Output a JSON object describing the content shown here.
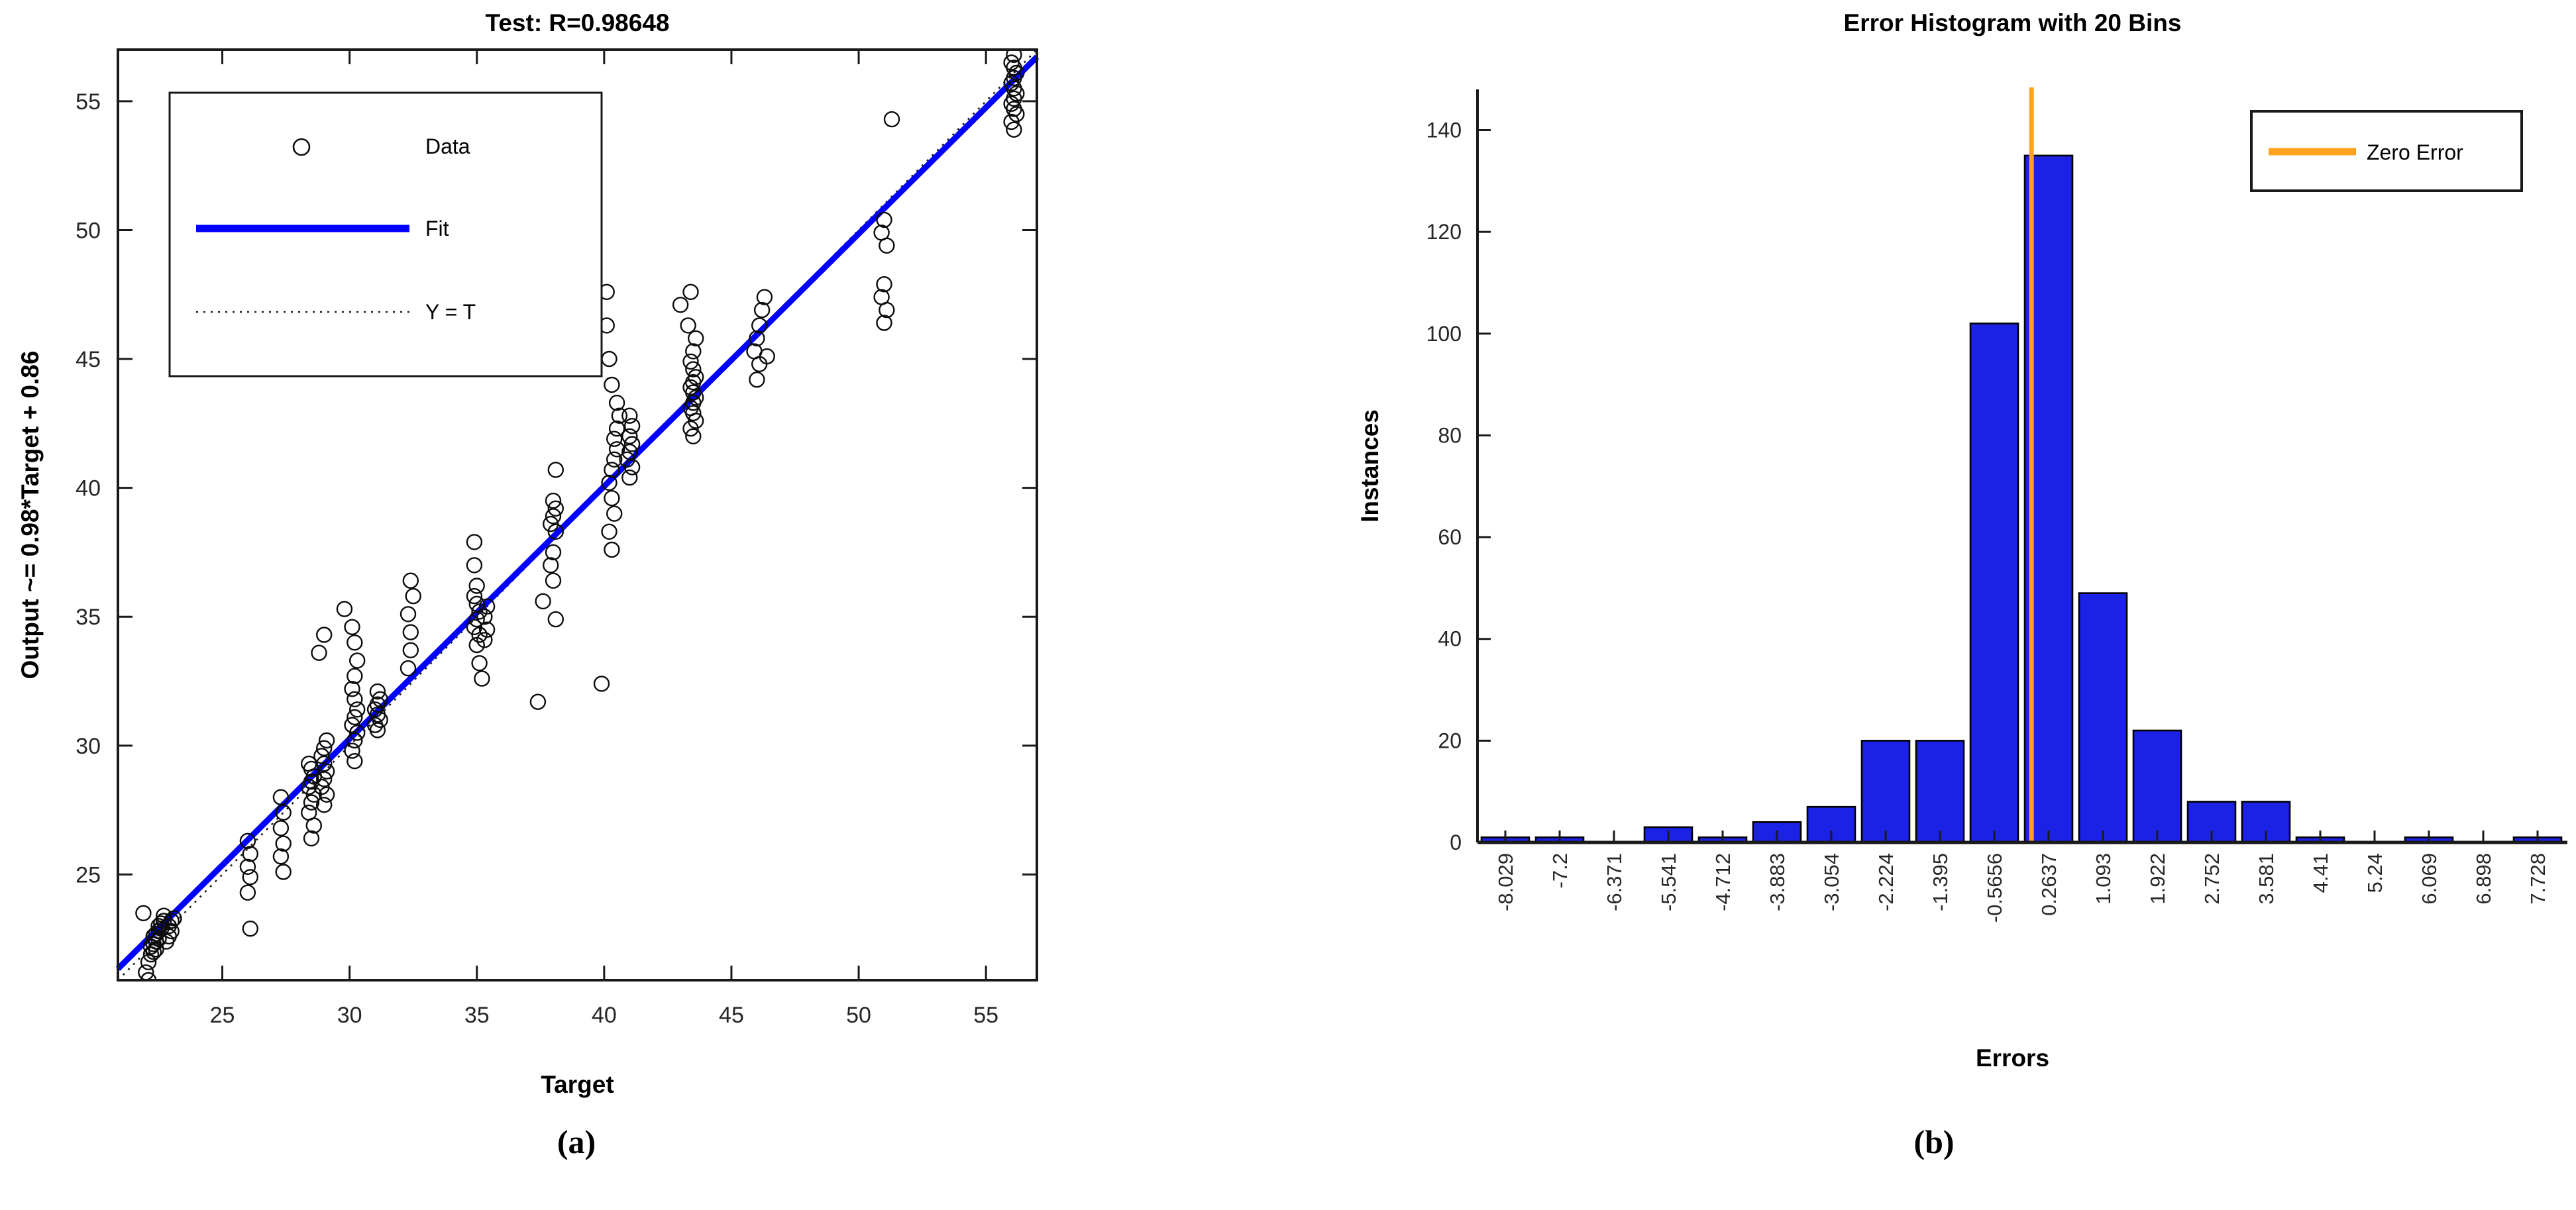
{
  "page": {
    "background": "#ffffff",
    "caption_a": "(a)",
    "caption_b": "(b)"
  },
  "chart_data": [
    {
      "type": "scatter",
      "panel": "a",
      "title": "Test: R=0.98648",
      "xlabel": "Target",
      "ylabel": "Output ~= 0.98*Target + 0.86",
      "xlim": [
        20.9,
        57.0
      ],
      "ylim": [
        20.9,
        57.0
      ],
      "xticks": [
        25,
        30,
        35,
        40,
        45,
        50,
        55
      ],
      "yticks": [
        25,
        30,
        35,
        40,
        45,
        50,
        55
      ],
      "grid": false,
      "legend_position": "top-left",
      "legend": [
        {
          "label": "Data",
          "type": "marker",
          "color": "#0d0d0d"
        },
        {
          "label": "Fit",
          "type": "line",
          "color": "#0000FF"
        },
        {
          "label": "Y = T",
          "type": "dotted",
          "color": "#1a1a1a"
        }
      ],
      "fit_line": {
        "slope": 0.98,
        "intercept": 0.86,
        "color": "#0000FF"
      },
      "identity_line": {
        "style": "dotted",
        "color": "#1a1a1a"
      },
      "marker": {
        "shape": "circle",
        "edge_color": "#0d0d0d",
        "fill": "none"
      },
      "points": [
        [
          21.9,
          23.5
        ],
        [
          22.0,
          21.2
        ],
        [
          22.1,
          20.9
        ],
        [
          22.1,
          21.6
        ],
        [
          22.2,
          21.9
        ],
        [
          22.3,
          22.0
        ],
        [
          22.4,
          22.1
        ],
        [
          22.2,
          22.2
        ],
        [
          22.3,
          22.3
        ],
        [
          22.4,
          22.4
        ],
        [
          22.5,
          22.5
        ],
        [
          22.3,
          22.6
        ],
        [
          22.4,
          22.7
        ],
        [
          22.5,
          22.8
        ],
        [
          22.6,
          22.9
        ],
        [
          22.5,
          23.0
        ],
        [
          22.6,
          23.1
        ],
        [
          22.7,
          23.2
        ],
        [
          22.7,
          23.4
        ],
        [
          22.8,
          22.4
        ],
        [
          22.9,
          22.6
        ],
        [
          23.0,
          22.8
        ],
        [
          22.9,
          23.0
        ],
        [
          23.0,
          23.2
        ],
        [
          23.1,
          23.3
        ],
        [
          26.1,
          22.9
        ],
        [
          26.0,
          24.3
        ],
        [
          26.1,
          24.9
        ],
        [
          26.0,
          25.3
        ],
        [
          26.1,
          25.8
        ],
        [
          26.0,
          26.3
        ],
        [
          27.4,
          25.1
        ],
        [
          27.3,
          25.7
        ],
        [
          27.4,
          26.2
        ],
        [
          27.3,
          26.8
        ],
        [
          27.4,
          27.4
        ],
        [
          27.3,
          28.0
        ],
        [
          28.5,
          26.4
        ],
        [
          28.6,
          26.9
        ],
        [
          28.4,
          27.4
        ],
        [
          28.5,
          27.8
        ],
        [
          28.6,
          28.1
        ],
        [
          28.4,
          28.4
        ],
        [
          28.5,
          28.6
        ],
        [
          28.6,
          28.8
        ],
        [
          28.5,
          29.1
        ],
        [
          28.4,
          29.3
        ],
        [
          29.0,
          27.7
        ],
        [
          29.1,
          28.1
        ],
        [
          28.9,
          28.4
        ],
        [
          29.0,
          28.7
        ],
        [
          29.1,
          29.0
        ],
        [
          29.0,
          29.3
        ],
        [
          28.9,
          29.6
        ],
        [
          29.0,
          29.9
        ],
        [
          29.1,
          30.2
        ],
        [
          28.8,
          33.6
        ],
        [
          29.0,
          34.3
        ],
        [
          29.8,
          35.3
        ],
        [
          30.2,
          29.4
        ],
        [
          30.1,
          29.8
        ],
        [
          30.2,
          30.2
        ],
        [
          30.3,
          30.5
        ],
        [
          30.1,
          30.8
        ],
        [
          30.2,
          31.1
        ],
        [
          30.3,
          31.4
        ],
        [
          30.2,
          31.8
        ],
        [
          30.1,
          32.2
        ],
        [
          30.2,
          32.7
        ],
        [
          30.3,
          33.3
        ],
        [
          30.2,
          34.0
        ],
        [
          30.1,
          34.6
        ],
        [
          31.1,
          30.6
        ],
        [
          31.0,
          30.8
        ],
        [
          31.2,
          31.0
        ],
        [
          31.1,
          31.2
        ],
        [
          31.0,
          31.4
        ],
        [
          31.1,
          31.6
        ],
        [
          31.2,
          31.8
        ],
        [
          31.1,
          32.1
        ],
        [
          32.3,
          33.0
        ],
        [
          32.4,
          33.7
        ],
        [
          32.4,
          34.4
        ],
        [
          32.3,
          35.1
        ],
        [
          32.5,
          35.8
        ],
        [
          32.4,
          36.4
        ],
        [
          35.0,
          33.9
        ],
        [
          35.1,
          34.3
        ],
        [
          34.9,
          34.6
        ],
        [
          35.0,
          34.9
        ],
        [
          35.1,
          35.2
        ],
        [
          35.0,
          35.5
        ],
        [
          34.9,
          35.8
        ],
        [
          35.0,
          36.2
        ],
        [
          34.9,
          37.0
        ],
        [
          34.9,
          37.9
        ],
        [
          35.3,
          34.1
        ],
        [
          35.4,
          34.5
        ],
        [
          35.3,
          35.0
        ],
        [
          35.4,
          35.4
        ],
        [
          35.1,
          33.2
        ],
        [
          35.2,
          32.6
        ],
        [
          37.4,
          31.7
        ],
        [
          39.9,
          32.4
        ],
        [
          37.6,
          35.6
        ],
        [
          38.1,
          34.9
        ],
        [
          38.0,
          36.4
        ],
        [
          37.9,
          37.0
        ],
        [
          38.0,
          37.5
        ],
        [
          38.1,
          38.3
        ],
        [
          37.9,
          38.6
        ],
        [
          38.0,
          38.9
        ],
        [
          38.1,
          39.2
        ],
        [
          38.0,
          39.5
        ],
        [
          38.1,
          40.7
        ],
        [
          40.3,
          37.6
        ],
        [
          40.2,
          38.3
        ],
        [
          40.4,
          39.0
        ],
        [
          40.3,
          39.6
        ],
        [
          40.2,
          40.2
        ],
        [
          40.3,
          40.7
        ],
        [
          40.4,
          41.1
        ],
        [
          40.5,
          41.5
        ],
        [
          40.4,
          41.9
        ],
        [
          40.5,
          42.3
        ],
        [
          40.6,
          42.8
        ],
        [
          40.5,
          43.3
        ],
        [
          40.3,
          44.0
        ],
        [
          40.2,
          45.0
        ],
        [
          40.1,
          46.3
        ],
        [
          40.1,
          47.6
        ],
        [
          41.0,
          40.4
        ],
        [
          41.1,
          40.8
        ],
        [
          40.9,
          41.1
        ],
        [
          41.0,
          41.4
        ],
        [
          41.1,
          41.7
        ],
        [
          41.0,
          42.0
        ],
        [
          41.1,
          42.4
        ],
        [
          41.0,
          42.8
        ],
        [
          43.5,
          42.0
        ],
        [
          43.4,
          42.3
        ],
        [
          43.6,
          42.6
        ],
        [
          43.5,
          42.9
        ],
        [
          43.4,
          43.1
        ],
        [
          43.5,
          43.3
        ],
        [
          43.6,
          43.5
        ],
        [
          43.5,
          43.7
        ],
        [
          43.4,
          43.9
        ],
        [
          43.5,
          44.1
        ],
        [
          43.6,
          44.3
        ],
        [
          43.5,
          44.6
        ],
        [
          43.4,
          44.9
        ],
        [
          43.5,
          45.3
        ],
        [
          43.6,
          45.8
        ],
        [
          43.3,
          46.3
        ],
        [
          43.0,
          47.1
        ],
        [
          43.4,
          47.6
        ],
        [
          46.0,
          44.2
        ],
        [
          46.1,
          44.8
        ],
        [
          45.9,
          45.3
        ],
        [
          46.0,
          45.8
        ],
        [
          46.1,
          46.3
        ],
        [
          46.2,
          46.9
        ],
        [
          46.4,
          45.1
        ],
        [
          46.3,
          47.4
        ],
        [
          51.0,
          46.4
        ],
        [
          51.1,
          46.9
        ],
        [
          50.9,
          47.4
        ],
        [
          51.0,
          47.9
        ],
        [
          51.1,
          49.4
        ],
        [
          50.9,
          49.9
        ],
        [
          51.0,
          50.4
        ],
        [
          51.3,
          54.3
        ],
        [
          56.1,
          53.9
        ],
        [
          56.0,
          54.2
        ],
        [
          56.2,
          54.5
        ],
        [
          56.1,
          54.7
        ],
        [
          56.0,
          54.9
        ],
        [
          56.1,
          55.1
        ],
        [
          56.2,
          55.3
        ],
        [
          56.1,
          55.5
        ],
        [
          56.0,
          55.7
        ],
        [
          56.1,
          55.9
        ],
        [
          56.2,
          56.1
        ],
        [
          56.1,
          56.3
        ],
        [
          56.0,
          56.5
        ],
        [
          56.1,
          56.8
        ]
      ]
    },
    {
      "type": "bar",
      "panel": "b",
      "title": "Error Histogram with 20 Bins",
      "xlabel": "Errors",
      "ylabel": "Instances",
      "yticks": [
        0,
        20,
        40,
        60,
        80,
        100,
        120,
        140
      ],
      "ylim": [
        0,
        148
      ],
      "grid": false,
      "categories": [
        "-8.029",
        "-7.2",
        "-6.371",
        "-5.541",
        "-4.712",
        "-3.883",
        "-3.054",
        "-2.224",
        "-1.395",
        "-0.5656",
        "0.2637",
        "1.093",
        "1.922",
        "2.752",
        "3.581",
        "4.41",
        "5.24",
        "6.069",
        "6.898",
        "7.728"
      ],
      "bin_centers": [
        -8.029,
        -7.2,
        -6.371,
        -5.541,
        -4.712,
        -3.883,
        -3.054,
        -2.224,
        -1.395,
        -0.5656,
        0.2637,
        1.093,
        1.922,
        2.752,
        3.581,
        4.41,
        5.24,
        6.069,
        6.898,
        7.728
      ],
      "values": [
        1,
        1,
        0,
        3,
        1,
        4,
        7,
        20,
        20,
        102,
        135,
        49,
        22,
        8,
        8,
        1,
        0,
        1,
        0,
        1
      ],
      "bar_color": "#1B22E6",
      "bar_edge_color": "#000000",
      "zero_line": {
        "label": "Zero Error",
        "color": "#FFA21E",
        "x": 0
      },
      "legend_position": "top-right"
    }
  ]
}
